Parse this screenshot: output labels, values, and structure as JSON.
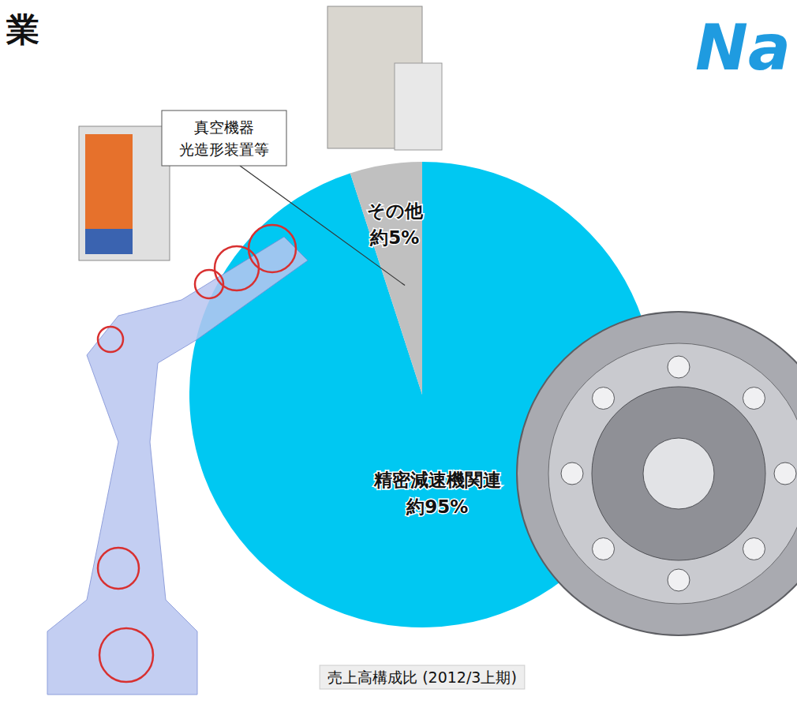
{
  "header": {
    "title": "業",
    "logo": "Na"
  },
  "chart_data": {
    "type": "pie",
    "title": "売上高構成比 (2012/3上期)",
    "categories": [
      "精密減速機関連",
      "その他"
    ],
    "values": [
      95,
      5
    ],
    "value_labels": [
      "約95%",
      "約5%"
    ],
    "colors": [
      "#00c8f2",
      "#c0c0c0"
    ],
    "data_labels": true,
    "annotations": [
      "真空機器",
      "光造形装置等"
    ]
  }
}
